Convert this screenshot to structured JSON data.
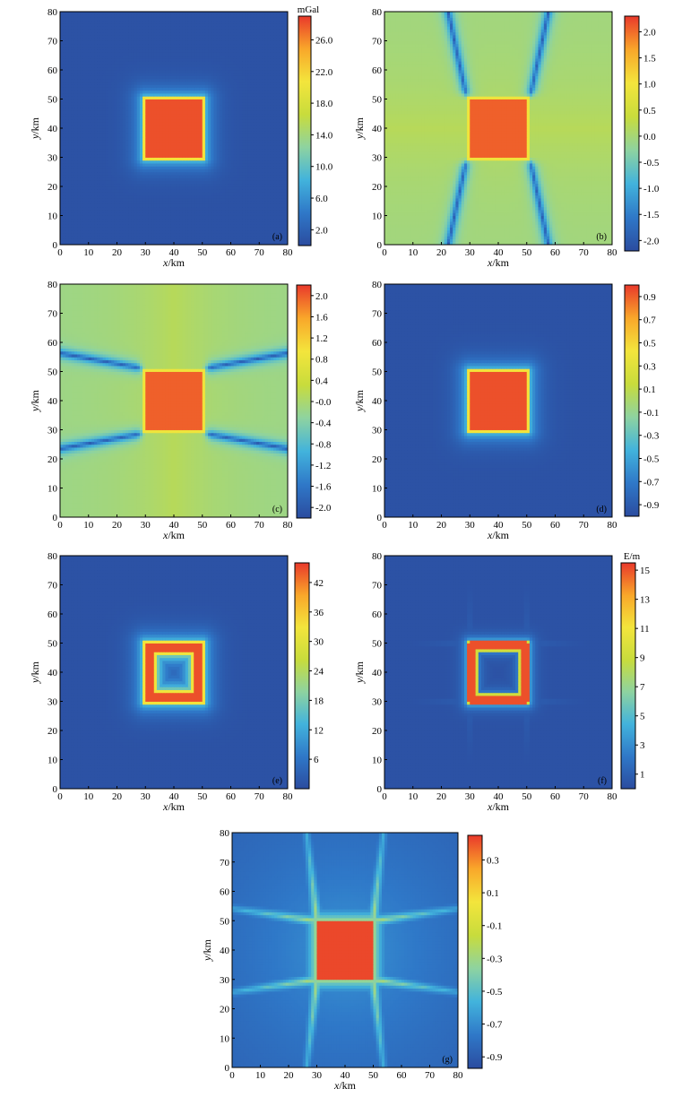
{
  "chart_data": [
    {
      "type": "heatmap",
      "panel_label": "(a)",
      "xlabel_var": "x",
      "xlabel_unit": "/km",
      "ylabel_var": "y",
      "ylabel_unit": "/km",
      "x_ticks": [
        0,
        10,
        20,
        30,
        40,
        50,
        60,
        70,
        80
      ],
      "y_ticks": [
        0,
        10,
        20,
        30,
        40,
        50,
        60,
        70,
        80
      ],
      "xlim": [
        0,
        80
      ],
      "ylim": [
        0,
        80
      ],
      "colorbar": {
        "unit": "mGal",
        "ticks": [
          "26.0",
          "22.0",
          "18.0",
          "14.0",
          "10.0",
          "6.0",
          "2.0"
        ],
        "range": [
          0,
          29
        ]
      },
      "feature": {
        "pattern": "square",
        "x_range": [
          30,
          50
        ],
        "y_range": [
          30,
          50
        ]
      }
    },
    {
      "type": "heatmap",
      "panel_label": "(b)",
      "xlabel_var": "x",
      "xlabel_unit": "/km",
      "ylabel_var": "y",
      "ylabel_unit": "/km",
      "x_ticks": [
        0,
        10,
        20,
        30,
        40,
        50,
        60,
        70,
        80
      ],
      "y_ticks": [
        0,
        10,
        20,
        30,
        40,
        50,
        60,
        70,
        80
      ],
      "xlim": [
        0,
        80
      ],
      "ylim": [
        0,
        80
      ],
      "colorbar": {
        "unit": "",
        "ticks": [
          "2.0",
          "1.5",
          "1.0",
          "0.5",
          "0.0",
          "-0.5",
          "-1.0",
          "-1.5",
          "-2.0"
        ],
        "range": [
          -2.2,
          2.3
        ]
      },
      "feature": {
        "pattern": "square_vertical_lobes",
        "x_range": [
          30,
          50
        ],
        "y_range": [
          30,
          50
        ]
      }
    },
    {
      "type": "heatmap",
      "panel_label": "(c)",
      "xlabel_var": "x",
      "xlabel_unit": "/km",
      "ylabel_var": "y",
      "ylabel_unit": "/km",
      "x_ticks": [
        0,
        10,
        20,
        30,
        40,
        50,
        60,
        70,
        80
      ],
      "y_ticks": [
        0,
        10,
        20,
        30,
        40,
        50,
        60,
        70,
        80
      ],
      "xlim": [
        0,
        80
      ],
      "ylim": [
        0,
        80
      ],
      "colorbar": {
        "unit": "",
        "ticks": [
          "2.0",
          "1.6",
          "1.2",
          "0.8",
          "0.4",
          "-0.0",
          "-0.4",
          "-0.8",
          "-1.2",
          "-1.6",
          "-2.0"
        ],
        "range": [
          -2.2,
          2.2
        ]
      },
      "feature": {
        "pattern": "square_horizontal_lobes",
        "x_range": [
          30,
          50
        ],
        "y_range": [
          30,
          50
        ]
      }
    },
    {
      "type": "heatmap",
      "panel_label": "(d)",
      "xlabel_var": "x",
      "xlabel_unit": "/km",
      "ylabel_var": "y",
      "ylabel_unit": "/km",
      "x_ticks": [
        0,
        10,
        20,
        30,
        40,
        50,
        60,
        70,
        80
      ],
      "y_ticks": [
        0,
        10,
        20,
        30,
        40,
        50,
        60,
        70,
        80
      ],
      "xlim": [
        0,
        80
      ],
      "ylim": [
        0,
        80
      ],
      "colorbar": {
        "unit": "",
        "ticks": [
          "0.9",
          "0.7",
          "0.5",
          "0.3",
          "0.1",
          "-0.1",
          "-0.3",
          "-0.5",
          "-0.7",
          "-0.9"
        ],
        "range": [
          -1.0,
          1.0
        ]
      },
      "feature": {
        "pattern": "square",
        "x_range": [
          30,
          50
        ],
        "y_range": [
          30,
          50
        ]
      }
    },
    {
      "type": "heatmap",
      "panel_label": "(e)",
      "xlabel_var": "x",
      "xlabel_unit": "/km",
      "ylabel_var": "y",
      "ylabel_unit": "/km",
      "x_ticks": [
        0,
        10,
        20,
        30,
        40,
        50,
        60,
        70,
        80
      ],
      "y_ticks": [
        0,
        10,
        20,
        30,
        40,
        50,
        60,
        70,
        80
      ],
      "xlim": [
        0,
        80
      ],
      "ylim": [
        0,
        80
      ],
      "colorbar": {
        "unit": "",
        "ticks": [
          "42",
          "36",
          "30",
          "24",
          "18",
          "12",
          "6"
        ],
        "range": [
          0,
          46
        ]
      },
      "feature": {
        "pattern": "ring",
        "x_range": [
          30,
          50
        ],
        "y_range": [
          30,
          50
        ]
      }
    },
    {
      "type": "heatmap",
      "panel_label": "(f)",
      "xlabel_var": "x",
      "xlabel_unit": "/km",
      "ylabel_var": "y",
      "ylabel_unit": "/km",
      "x_ticks": [
        0,
        10,
        20,
        30,
        40,
        50,
        60,
        70,
        80
      ],
      "y_ticks": [
        0,
        10,
        20,
        30,
        40,
        50,
        60,
        70,
        80
      ],
      "xlim": [
        0,
        80
      ],
      "ylim": [
        0,
        80
      ],
      "colorbar": {
        "unit": "E/m",
        "ticks": [
          "15",
          "13",
          "11",
          "9",
          "7",
          "5",
          "3",
          "1"
        ],
        "range": [
          0,
          15.5
        ]
      },
      "feature": {
        "pattern": "thin_ring",
        "x_range": [
          30,
          50
        ],
        "y_range": [
          30,
          50
        ]
      }
    },
    {
      "type": "heatmap",
      "panel_label": "(g)",
      "xlabel_var": "x",
      "xlabel_unit": "/km",
      "ylabel_var": "y",
      "ylabel_unit": "/km",
      "x_ticks": [
        0,
        10,
        20,
        30,
        40,
        50,
        60,
        70,
        80
      ],
      "y_ticks": [
        0,
        10,
        20,
        30,
        40,
        50,
        60,
        70,
        80
      ],
      "xlim": [
        0,
        80
      ],
      "ylim": [
        0,
        80
      ],
      "colorbar": {
        "unit": "",
        "ticks": [
          "0.3",
          "0.1",
          "-0.1",
          "-0.3",
          "-0.5",
          "-0.7",
          "-0.9"
        ],
        "range": [
          -0.97,
          0.45
        ]
      },
      "feature": {
        "pattern": "square_star",
        "x_range": [
          30,
          50
        ],
        "y_range": [
          30,
          50
        ]
      }
    }
  ],
  "colormap": [
    "#2b4c9f",
    "#2f78c8",
    "#42b3dc",
    "#8ed3a0",
    "#c8dc3c",
    "#f3e53c",
    "#f9a72a",
    "#e9392b"
  ]
}
